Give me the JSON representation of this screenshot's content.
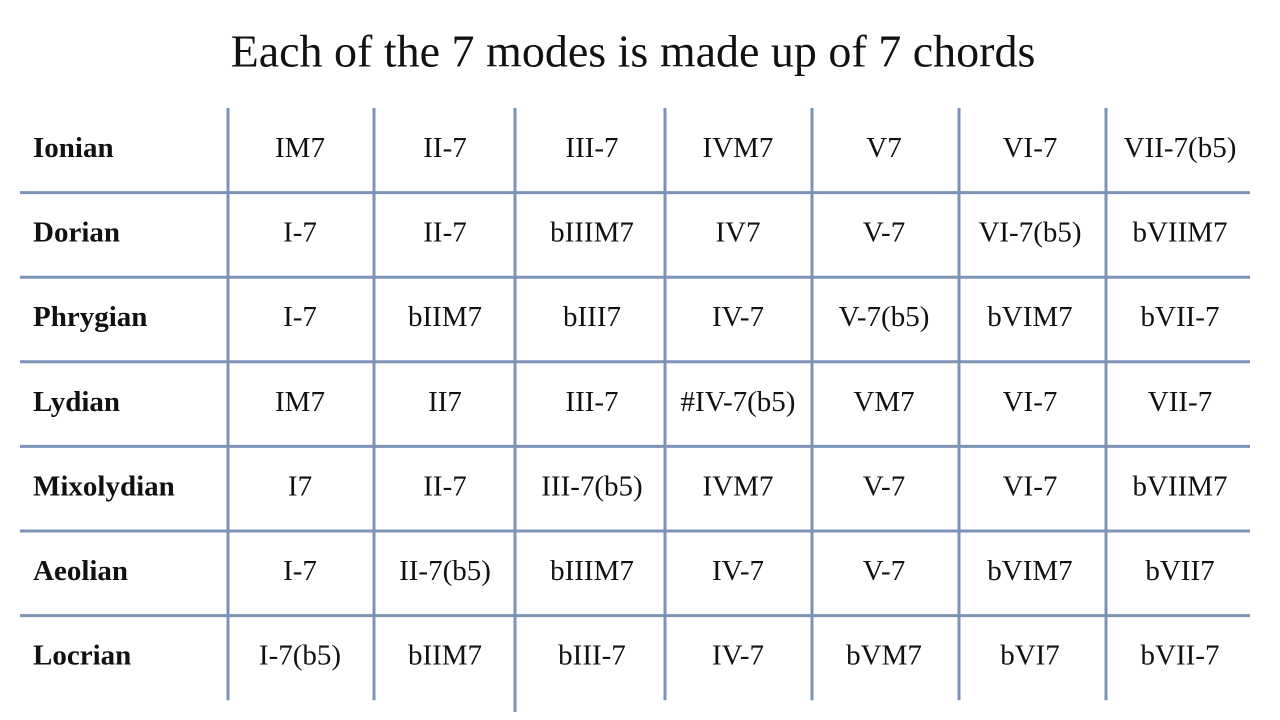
{
  "title": "Each of the 7 modes is made up of 7 chords",
  "table": {
    "rows": [
      [
        "Ionian",
        "IM7",
        "II-7",
        "III-7",
        "IVM7",
        "V7",
        "VI-7",
        "VII-7(b5)"
      ],
      [
        "Dorian",
        "I-7",
        "II-7",
        "bIIIM7",
        "IV7",
        "V-7",
        "VI-7(b5)",
        "bVIIM7"
      ],
      [
        "Phrygian",
        "I-7",
        "bIIM7",
        "bIII7",
        "IV-7",
        "V-7(b5)",
        "bVIM7",
        "bVII-7"
      ],
      [
        "Lydian",
        "IM7",
        "II7",
        "III-7",
        "#IV-7(b5)",
        "VM7",
        "VI-7",
        "VII-7"
      ],
      [
        "Mixolydian",
        "I7",
        "II-7",
        "III-7(b5)",
        "IVM7",
        "V-7",
        "VI-7",
        "bVIIM7"
      ],
      [
        "Aeolian",
        "I-7",
        "II-7(b5)",
        "bIIIM7",
        "IV-7",
        "V-7",
        "bVIM7",
        "bVII7"
      ],
      [
        "Locrian",
        "I-7(b5)",
        "bIIM7",
        "bIII-7",
        "IV-7",
        "bVM7",
        "bVI7",
        "bVII-7"
      ]
    ]
  }
}
